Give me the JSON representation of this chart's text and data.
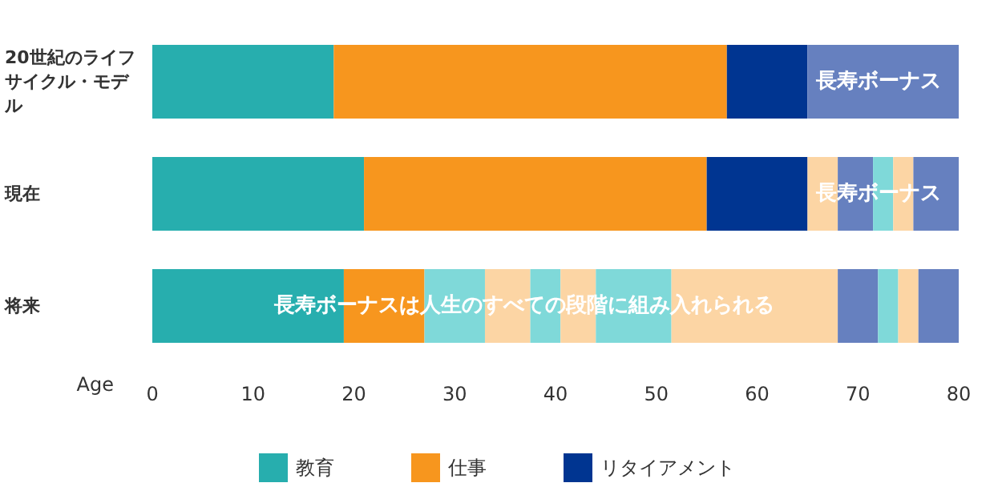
{
  "chart_data": {
    "type": "bar",
    "orientation": "horizontal",
    "stacked": true,
    "categories": [
      "20世紀のライフサイクル・モデル",
      "現在",
      "将来"
    ],
    "xlabel": "Age",
    "xlim": [
      0,
      80
    ],
    "xticks": [
      0,
      10,
      20,
      30,
      40,
      50,
      60,
      70,
      80
    ],
    "grid": false,
    "legend": "bottom",
    "series": [
      {
        "name": "教育",
        "color": "#27aeae",
        "values": [
          18,
          21,
          19
        ]
      },
      {
        "name": "仕事",
        "color": "#f7961e",
        "values": [
          39,
          34,
          8
        ]
      },
      {
        "name": "リタイアメント",
        "color": "#003591",
        "values": [
          8,
          10,
          null
        ]
      },
      {
        "colors": [
          "#6680bf",
          "#fcd5a4",
          "#7fd9d9"
        ],
        "values": [
          15,
          3,
          6
        ]
      },
      {
        "colors": [
          "#6680bf",
          "#6680bf",
          "#fcd5a4"
        ],
        "values": [
          null,
          3.5,
          4.5
        ]
      },
      {
        "colors": [
          "#7fd9d9",
          "#7fd9d9",
          "#7fd9d9"
        ],
        "values": [
          null,
          2,
          3
        ]
      },
      {
        "colors": [
          "#fcd5a4",
          "#fcd5a4",
          "#fcd5a4"
        ],
        "values": [
          null,
          2,
          3.5
        ]
      },
      {
        "colors": [
          "#6680bf",
          "#6680bf",
          "#7fd9d9"
        ],
        "values": [
          null,
          4.5,
          7.5
        ]
      },
      {
        "colors": [
          "#fcd5a4",
          "#fcd5a4",
          "#fcd5a4"
        ],
        "values": [
          null,
          null,
          16.5
        ]
      },
      {
        "colors": [
          "#6680bf",
          "#6680bf",
          "#6680bf"
        ],
        "values": [
          null,
          null,
          4
        ]
      },
      {
        "colors": [
          "#7fd9d9",
          "#7fd9d9",
          "#7fd9d9"
        ],
        "values": [
          null,
          null,
          2
        ]
      },
      {
        "colors": [
          "#fcd5a4",
          "#fcd5a4",
          "#fcd5a4"
        ],
        "values": [
          null,
          null,
          2
        ]
      },
      {
        "colors": [
          "#6680bf",
          "#6680bf",
          "#6680bf"
        ],
        "values": [
          null,
          null,
          4
        ]
      }
    ],
    "annotations": [
      "長寿ボーナス",
      "長寿ボーナス",
      "長寿ボーナスは人生のすべての段階に組み入れられる"
    ]
  }
}
